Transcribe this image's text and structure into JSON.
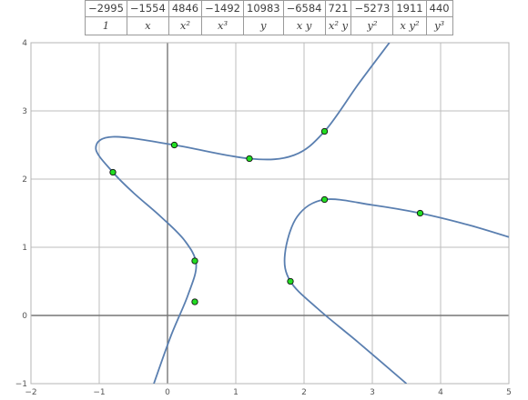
{
  "coefficient_table": {
    "coefficients": [
      "−2995",
      "−1554",
      "4846",
      "−1492",
      "10983",
      "−6584",
      "721",
      "−5273",
      "1911",
      "440"
    ],
    "terms": [
      "1",
      "x",
      "x²",
      "x³",
      "y",
      "x y",
      "x² y",
      "y²",
      "x y²",
      "y³"
    ]
  },
  "chart_data": {
    "type": "line",
    "title": "",
    "xlabel": "",
    "ylabel": "",
    "xlim": [
      -2,
      5
    ],
    "ylim": [
      -1,
      4
    ],
    "x_ticks": [
      -2,
      -1,
      0,
      1,
      2,
      3,
      4,
      5
    ],
    "y_ticks": [
      -1,
      0,
      1,
      2,
      3,
      4
    ],
    "grid": true,
    "curve_color": "#5a7fb0",
    "point_fill": "#22dd22",
    "point_stroke": "#111111",
    "curve_branches": [
      {
        "points": [
          [
            -0.2,
            -1.0
          ],
          [
            0.05,
            -0.3
          ],
          [
            0.3,
            0.3
          ],
          [
            0.42,
            0.75
          ],
          [
            0.25,
            1.1
          ],
          [
            -0.1,
            1.45
          ],
          [
            -0.5,
            1.8
          ],
          [
            -0.8,
            2.1
          ],
          [
            -1.05,
            2.45
          ],
          [
            -0.8,
            2.62
          ],
          [
            0.1,
            2.5
          ],
          [
            1.2,
            2.3
          ],
          [
            1.85,
            2.35
          ],
          [
            2.3,
            2.7
          ],
          [
            2.8,
            3.4
          ],
          [
            3.25,
            4.0
          ]
        ]
      },
      {
        "points": [
          [
            3.5,
            -1.0
          ],
          [
            2.8,
            -0.4
          ],
          [
            2.2,
            0.1
          ],
          [
            1.8,
            0.5
          ],
          [
            1.72,
            0.9
          ],
          [
            1.9,
            1.45
          ],
          [
            2.3,
            1.7
          ],
          [
            3.0,
            1.62
          ],
          [
            3.7,
            1.5
          ],
          [
            4.4,
            1.33
          ],
          [
            5.0,
            1.15
          ]
        ]
      }
    ],
    "marked_points": [
      [
        -0.8,
        2.1
      ],
      [
        0.1,
        2.5
      ],
      [
        1.2,
        2.3
      ],
      [
        2.3,
        2.7
      ],
      [
        0.4,
        0.8
      ],
      [
        0.4,
        0.2
      ],
      [
        1.8,
        0.5
      ],
      [
        2.3,
        1.7
      ],
      [
        3.7,
        1.5
      ]
    ]
  }
}
